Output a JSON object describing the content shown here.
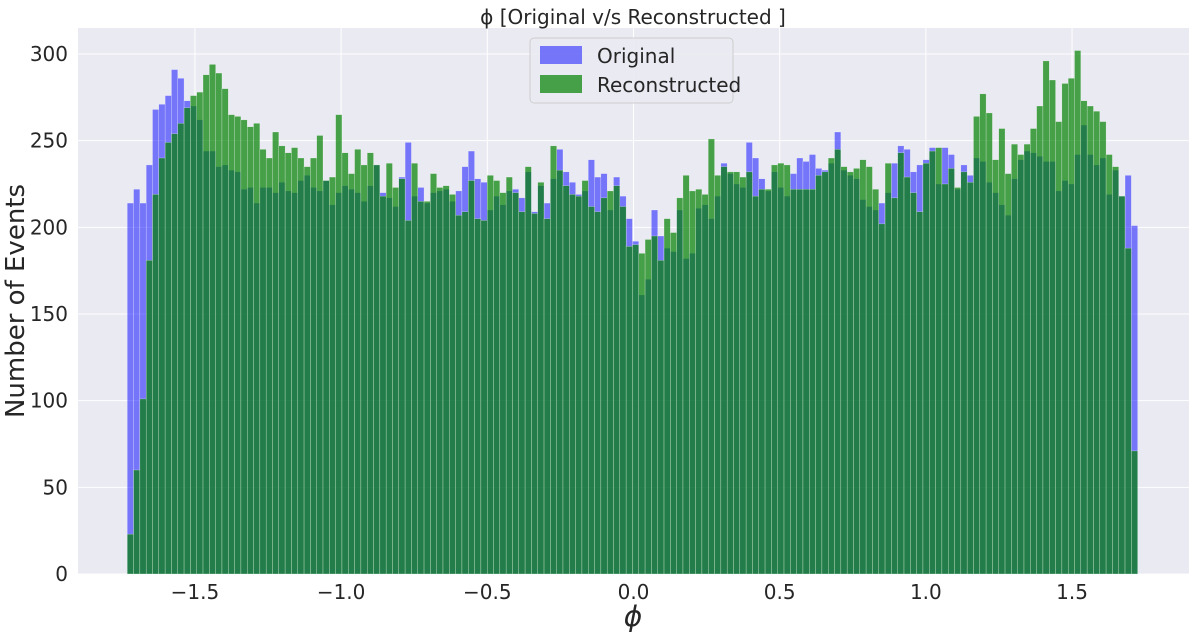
{
  "chart_data": {
    "type": "bar",
    "title": "ϕ [Original v/s Reconstructed ]",
    "xlabel": "ϕ",
    "ylabel": "Number of Events",
    "xlim": [
      -1.9,
      1.9
    ],
    "ylim": [
      0,
      315
    ],
    "x_ticks": [
      -1.5,
      -1.0,
      -0.5,
      0.0,
      0.5,
      1.0,
      1.5
    ],
    "x_tick_labels": [
      "−1.5",
      "−1.0",
      "−0.5",
      "0.0",
      "0.5",
      "1.0",
      "1.5"
    ],
    "y_ticks": [
      0,
      50,
      100,
      150,
      200,
      250,
      300
    ],
    "y_tick_labels": [
      "0",
      "50",
      "100",
      "150",
      "200",
      "250",
      "300"
    ],
    "grid": true,
    "legend_position": "top-center",
    "bins": {
      "start": -1.7316,
      "width": 0.0216,
      "count": 160
    },
    "series": [
      {
        "name": "Original",
        "color": "#0000ff",
        "opacity": 0.5,
        "values": [
          214,
          222,
          214,
          236,
          268,
          271,
          276,
          291,
          286,
          273,
          270,
          262,
          244,
          244,
          235,
          236,
          233,
          232,
          222,
          223,
          214,
          223,
          223,
          220,
          226,
          221,
          220,
          227,
          230,
          223,
          221,
          227,
          213,
          220,
          224,
          222,
          220,
          215,
          224,
          236,
          220,
          217,
          212,
          229,
          249,
          218,
          223,
          214,
          220,
          221,
          222,
          215,
          221,
          235,
          244,
          228,
          226,
          210,
          218,
          213,
          221,
          222,
          217,
          232,
          209,
          224,
          214,
          228,
          245,
          232,
          226,
          219,
          221,
          239,
          229,
          231,
          210,
          229,
          218,
          205,
          192,
          161,
          170,
          210,
          195,
          188,
          186,
          210,
          182,
          185,
          211,
          213,
          205,
          218,
          237,
          231,
          225,
          223,
          249,
          240,
          228,
          221,
          232,
          223,
          218,
          231,
          240,
          238,
          242,
          234,
          233,
          237,
          255,
          233,
          230,
          228,
          216,
          212,
          210,
          214,
          220,
          237,
          247,
          245,
          232,
          236,
          239,
          246,
          225,
          246,
          242,
          222,
          236,
          230,
          240,
          238,
          226,
          220,
          213,
          207,
          228,
          239,
          244,
          243,
          241,
          238,
          238,
          221,
          227,
          225,
          242,
          259,
          242,
          236,
          240,
          219,
          233,
          218,
          230,
          201
        ]
      },
      {
        "name": "Reconstructed",
        "color": "#008000",
        "opacity": 0.7,
        "values": [
          23,
          60,
          101,
          181,
          219,
          240,
          249,
          254,
          260,
          269,
          276,
          278,
          288,
          294,
          289,
          280,
          265,
          264,
          262,
          258,
          260,
          245,
          240,
          255,
          247,
          243,
          246,
          240,
          235,
          240,
          253,
          227,
          229,
          265,
          243,
          231,
          245,
          236,
          243,
          236,
          218,
          237,
          223,
          228,
          204,
          237,
          215,
          215,
          231,
          223,
          224,
          219,
          207,
          209,
          227,
          205,
          204,
          230,
          227,
          220,
          229,
          220,
          209,
          235,
          208,
          226,
          205,
          247,
          233,
          224,
          219,
          218,
          227,
          212,
          209,
          217,
          221,
          224,
          212,
          189,
          190,
          185,
          193,
          195,
          181,
          205,
          197,
          217,
          230,
          221,
          222,
          219,
          251,
          230,
          235,
          232,
          232,
          229,
          232,
          218,
          222,
          222,
          236,
          237,
          236,
          222,
          222,
          222,
          222,
          230,
          232,
          240,
          245,
          235,
          232,
          234,
          239,
          235,
          222,
          202,
          237,
          217,
          243,
          229,
          220,
          209,
          237,
          244,
          246,
          225,
          234,
          223,
          232,
          226,
          264,
          277,
          266,
          239,
          257,
          231,
          248,
          242,
          248,
          257,
          270,
          296,
          285,
          261,
          283,
          286,
          302,
          273,
          270,
          267,
          261,
          242,
          235,
          218,
          188,
          71
        ]
      }
    ]
  }
}
